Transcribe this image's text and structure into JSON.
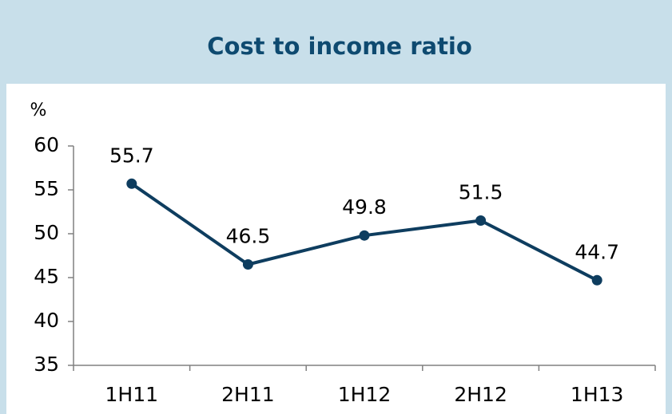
{
  "chart_data": {
    "type": "line",
    "title": "Cost to income ratio",
    "ylabel": "%",
    "categories": [
      "1H11",
      "2H11",
      "1H12",
      "2H12",
      "1H13"
    ],
    "series": [
      {
        "name": "Cost to income ratio",
        "color": "#0e3d5f",
        "values": [
          55.7,
          46.5,
          49.8,
          51.5,
          44.7
        ]
      }
    ],
    "ylim": [
      35,
      60
    ],
    "yticks": [
      35,
      40,
      45,
      50,
      55,
      60
    ],
    "grid": false
  }
}
